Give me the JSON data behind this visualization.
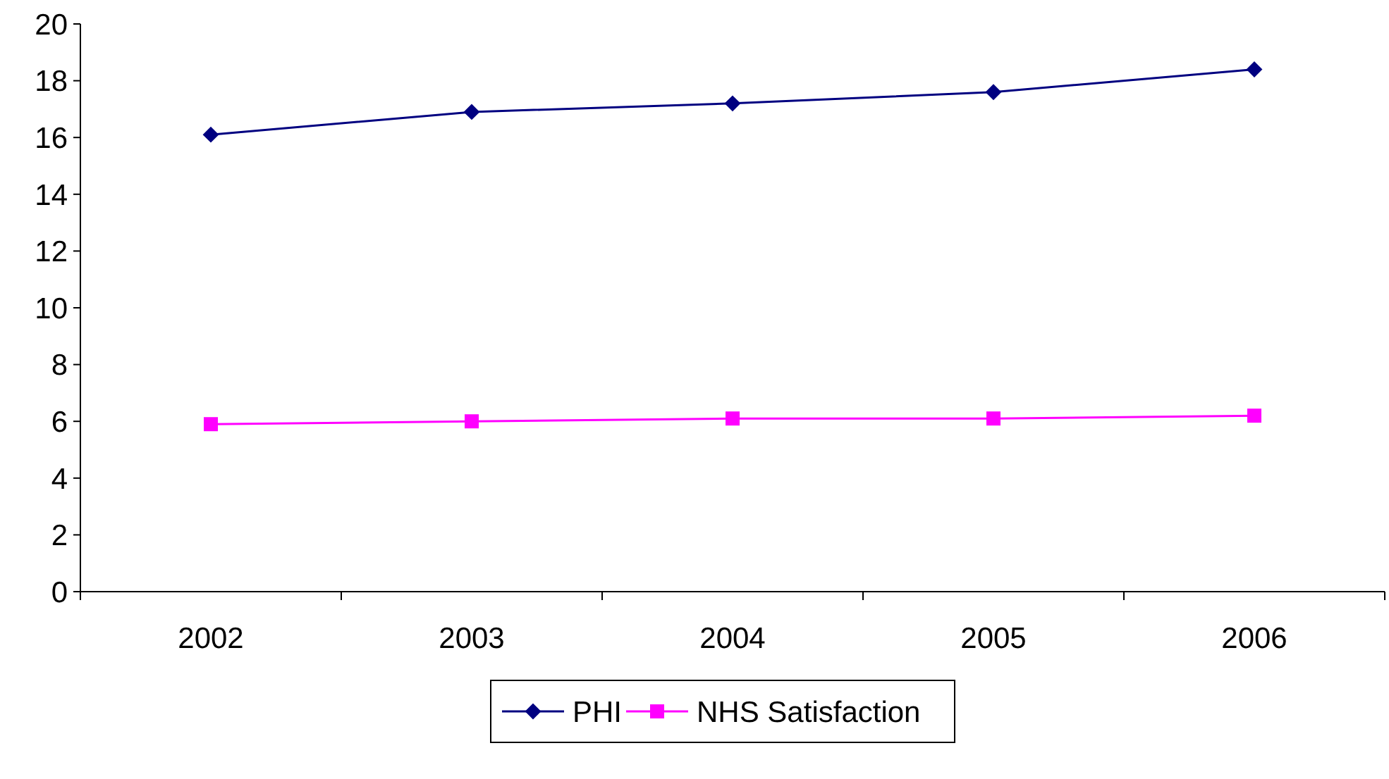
{
  "chart_data": {
    "type": "line",
    "categories": [
      "2002",
      "2003",
      "2004",
      "2005",
      "2006"
    ],
    "series": [
      {
        "name": "PHI",
        "color": "#000080",
        "marker": "diamond",
        "values": [
          16.1,
          16.9,
          17.2,
          17.6,
          18.4
        ]
      },
      {
        "name": "NHS Satisfaction",
        "color": "#ff00ff",
        "marker": "square",
        "values": [
          5.9,
          6.0,
          6.1,
          6.1,
          6.2
        ]
      }
    ],
    "ylim": [
      0,
      20
    ],
    "yticks": [
      0,
      2,
      4,
      6,
      8,
      10,
      12,
      14,
      16,
      18,
      20
    ],
    "grid": false,
    "legend": "bottom",
    "line_style": "solid"
  }
}
